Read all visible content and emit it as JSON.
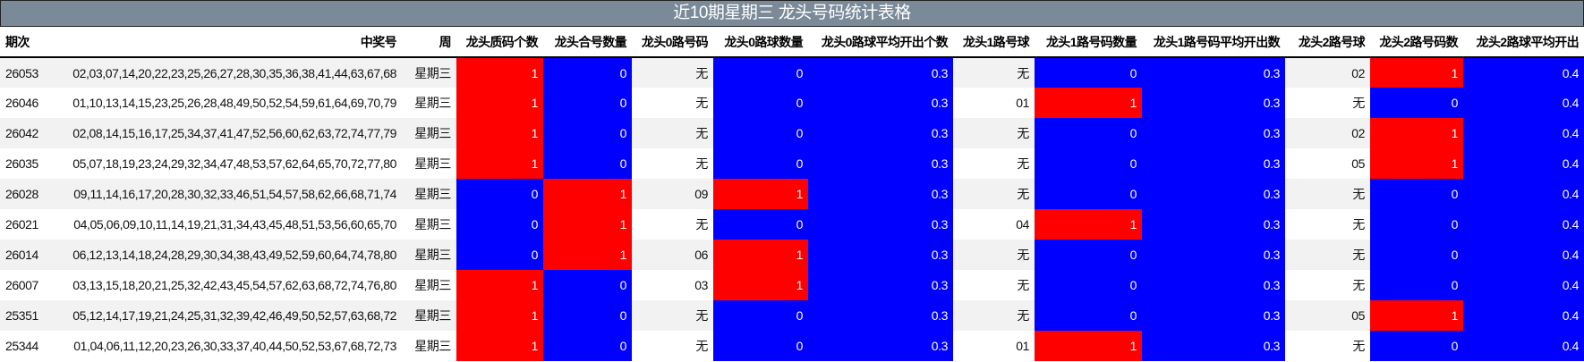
{
  "title": "近10期星期三 龙头号码统计表格",
  "colors": {
    "hit": "#ff0000",
    "miss": "#0000ff",
    "title_bg": "#7a8a99"
  },
  "columns": [
    "期次",
    "中奖号",
    "周",
    "龙头质码个数",
    "龙头合号数量",
    "龙头0路号码",
    "龙头0路球数量",
    "龙头0路球平均开出个数",
    "龙头1路号球",
    "龙头1路号码数量",
    "龙头1路号码平均开出数",
    "龙头2路号球",
    "龙头2路号码数",
    "龙头2路球平均开出"
  ],
  "rows": [
    [
      "26053",
      "02,03,07,14,20,22,23,25,26,27,28,30,35,36,38,41,44,63,67,68",
      "星期三",
      "1",
      "0",
      "无",
      "0",
      "0.3",
      "无",
      "0",
      "0.3",
      "02",
      "1",
      "0.4"
    ],
    [
      "26046",
      "01,10,13,14,15,23,25,26,28,48,49,50,52,54,59,61,64,69,70,79",
      "星期三",
      "1",
      "0",
      "无",
      "0",
      "0.3",
      "01",
      "1",
      "0.3",
      "无",
      "0",
      "0.4"
    ],
    [
      "26042",
      "02,08,14,15,16,17,25,34,37,41,47,52,56,60,62,63,72,74,77,79",
      "星期三",
      "1",
      "0",
      "无",
      "0",
      "0.3",
      "无",
      "0",
      "0.3",
      "02",
      "1",
      "0.4"
    ],
    [
      "26035",
      "05,07,18,19,23,24,29,32,34,47,48,53,57,62,64,65,70,72,77,80",
      "星期三",
      "1",
      "0",
      "无",
      "0",
      "0.3",
      "无",
      "0",
      "0.3",
      "05",
      "1",
      "0.4"
    ],
    [
      "26028",
      "09,11,14,16,17,20,28,30,32,33,46,51,54,57,58,62,66,68,71,74",
      "星期三",
      "0",
      "1",
      "09",
      "1",
      "0.3",
      "无",
      "0",
      "0.3",
      "无",
      "0",
      "0.4"
    ],
    [
      "26021",
      "04,05,06,09,10,11,14,19,21,31,34,43,45,48,51,53,56,60,65,70",
      "星期三",
      "0",
      "1",
      "无",
      "0",
      "0.3",
      "04",
      "1",
      "0.3",
      "无",
      "0",
      "0.4"
    ],
    [
      "26014",
      "06,12,13,14,18,24,28,29,30,34,38,43,49,52,59,60,64,74,78,80",
      "星期三",
      "0",
      "1",
      "06",
      "1",
      "0.3",
      "无",
      "0",
      "0.3",
      "无",
      "0",
      "0.4"
    ],
    [
      "26007",
      "03,13,15,18,20,21,25,32,42,43,45,54,57,62,63,68,72,74,76,80",
      "星期三",
      "1",
      "0",
      "03",
      "1",
      "0.3",
      "无",
      "0",
      "0.3",
      "无",
      "0",
      "0.4"
    ],
    [
      "25351",
      "05,12,14,17,19,21,24,25,31,32,39,42,46,49,50,52,57,63,68,72",
      "星期三",
      "1",
      "0",
      "无",
      "0",
      "0.3",
      "无",
      "0",
      "0.3",
      "05",
      "1",
      "0.4"
    ],
    [
      "25344",
      "01,04,06,11,12,20,23,26,30,33,37,40,44,50,52,53,67,68,72,73",
      "星期三",
      "1",
      "0",
      "无",
      "0",
      "0.3",
      "01",
      "1",
      "0.3",
      "无",
      "0",
      "0.4"
    ]
  ]
}
